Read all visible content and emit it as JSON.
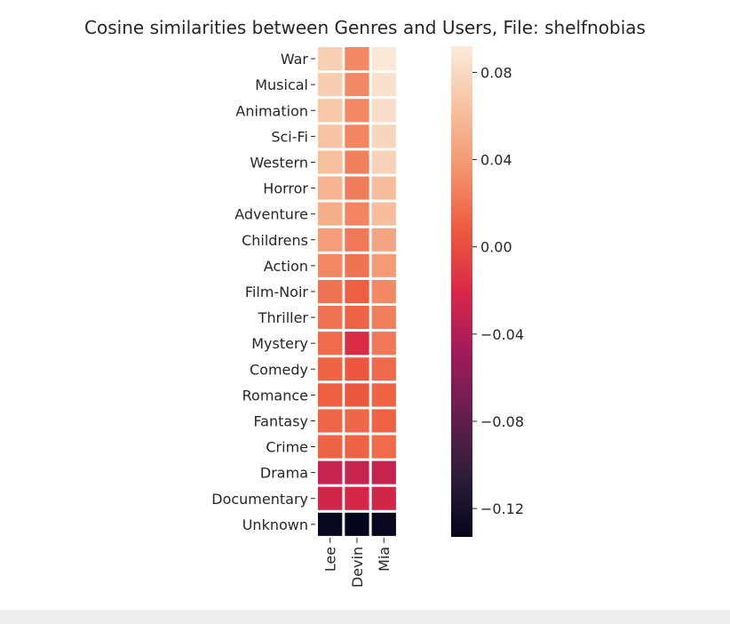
{
  "chart_data": {
    "type": "heatmap",
    "title": "Cosine similarities between Genres and Users, File: shelfnobias",
    "rows": [
      "War",
      "Musical",
      "Animation",
      "Sci-Fi",
      "Western",
      "Horror",
      "Adventure",
      "Childrens",
      "Action",
      "Film-Noir",
      "Thriller",
      "Mystery",
      "Comedy",
      "Romance",
      "Fantasy",
      "Crime",
      "Drama",
      "Documentary",
      "Unknown"
    ],
    "columns": [
      "Lee",
      "Devin",
      "Mia"
    ],
    "values": [
      [
        0.073,
        0.03,
        0.089
      ],
      [
        0.071,
        0.03,
        0.085
      ],
      [
        0.068,
        0.03,
        0.082
      ],
      [
        0.066,
        0.028,
        0.078
      ],
      [
        0.063,
        0.026,
        0.075
      ],
      [
        0.055,
        0.024,
        0.062
      ],
      [
        0.052,
        0.028,
        0.062
      ],
      [
        0.042,
        0.022,
        0.046
      ],
      [
        0.03,
        0.02,
        0.04
      ],
      [
        0.02,
        0.01,
        0.03
      ],
      [
        0.02,
        0.012,
        0.025
      ],
      [
        0.016,
        -0.018,
        0.022
      ],
      [
        0.012,
        0.006,
        0.015
      ],
      [
        0.01,
        0.006,
        0.012
      ],
      [
        0.013,
        0.014,
        0.012
      ],
      [
        0.012,
        0.012,
        0.016
      ],
      [
        -0.03,
        -0.03,
        -0.03
      ],
      [
        -0.025,
        -0.022,
        -0.024
      ],
      [
        -0.13,
        -0.133,
        -0.13
      ]
    ],
    "colorbar": {
      "min": -0.133,
      "max": 0.092,
      "ticks": [
        0.08,
        0.04,
        0.0,
        -0.04,
        -0.08,
        -0.12
      ],
      "tick_labels": [
        "0.08",
        "0.04",
        "0.00",
        "−0.04",
        "−0.08",
        "−0.12"
      ],
      "colormap": "rocket",
      "colormap_stops": [
        "#03051a",
        "#2e1e3b",
        "#661e4d",
        "#a11a5b",
        "#d92847",
        "#ee5a3e",
        "#f3946e",
        "#f6c19f",
        "#faebdd"
      ]
    },
    "grid": false,
    "legend": "colorbar-right"
  }
}
